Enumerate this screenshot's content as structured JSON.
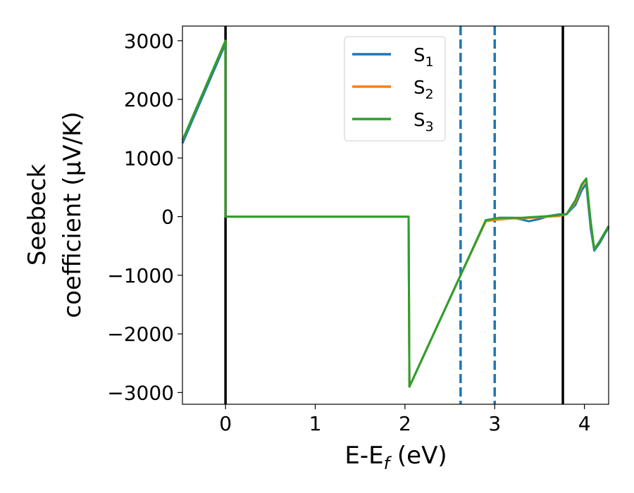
{
  "chart_data": {
    "type": "line",
    "xlabel": "E-E",
    "xlabel_sub": "f",
    "xlabel_unit": " (eV)",
    "ylabel_line1": "Seebeck",
    "ylabel_line2": "coefficient  (μV/K)",
    "xlim": [
      -0.48,
      4.27
    ],
    "ylim": [
      -3200,
      3250
    ],
    "x_ticks": [
      0,
      1,
      2,
      3,
      4
    ],
    "x_tick_labels": [
      "0",
      "1",
      "2",
      "3",
      "4"
    ],
    "y_ticks": [
      3000,
      2000,
      1000,
      0,
      -1000,
      -2000,
      -3000
    ],
    "y_tick_labels": [
      "3000",
      "2000",
      "1000",
      "0",
      "−1000",
      "−2000",
      "−3000"
    ],
    "grid": false,
    "legend_position": "top-center",
    "vertical_lines": [
      {
        "x": 0,
        "style": "solid",
        "color": "#000000"
      },
      {
        "x": 3.76,
        "style": "solid",
        "color": "#000000"
      },
      {
        "x": 2.62,
        "style": "dashed",
        "color": "#1f77b4"
      },
      {
        "x": 3.0,
        "style": "dashed",
        "color": "#1f77b4"
      }
    ],
    "series": [
      {
        "name": "S",
        "sub": "1",
        "color": "#1f77b4",
        "x": [
          -0.48,
          0,
          0.0,
          2.04,
          2.05,
          2.62,
          2.9,
          3.05,
          3.2,
          3.3,
          3.38,
          3.5,
          3.6,
          3.72,
          3.8,
          3.9,
          3.97,
          4.02,
          4.07,
          4.11,
          4.17,
          4.27
        ],
        "y": [
          1250,
          2950,
          0,
          0,
          -2900,
          -1000,
          -80,
          -20,
          -20,
          -50,
          -80,
          -40,
          10,
          40,
          40,
          200,
          450,
          560,
          -200,
          -580,
          -450,
          -180
        ]
      },
      {
        "name": "S",
        "sub": "2",
        "color": "#ff7f0e",
        "x": [
          -0.48,
          0,
          0.0,
          2.04,
          2.05,
          2.62,
          2.9,
          3.05,
          3.2,
          3.3,
          3.4,
          3.5,
          3.6,
          3.72,
          3.8,
          3.9,
          3.97,
          4.02,
          4.07,
          4.11,
          4.17,
          4.27
        ],
        "y": [
          1300,
          3000,
          0,
          0,
          -2900,
          -1000,
          -80,
          -50,
          -30,
          -30,
          -20,
          -10,
          0,
          10,
          40,
          250,
          520,
          640,
          -100,
          -560,
          -420,
          -160
        ]
      },
      {
        "name": "S",
        "sub": "3",
        "color": "#2ca02c",
        "x": [
          -0.48,
          0,
          0.0,
          2.04,
          2.05,
          2.62,
          2.9,
          3.05,
          3.2,
          3.3,
          3.4,
          3.5,
          3.6,
          3.72,
          3.8,
          3.9,
          3.97,
          4.02,
          4.07,
          4.11,
          4.17,
          4.27
        ],
        "y": [
          1300,
          3000,
          0,
          0,
          -2900,
          -1000,
          -60,
          -20,
          -20,
          -20,
          -10,
          0,
          10,
          30,
          40,
          280,
          550,
          650,
          -80,
          -560,
          -420,
          -160
        ]
      }
    ]
  }
}
